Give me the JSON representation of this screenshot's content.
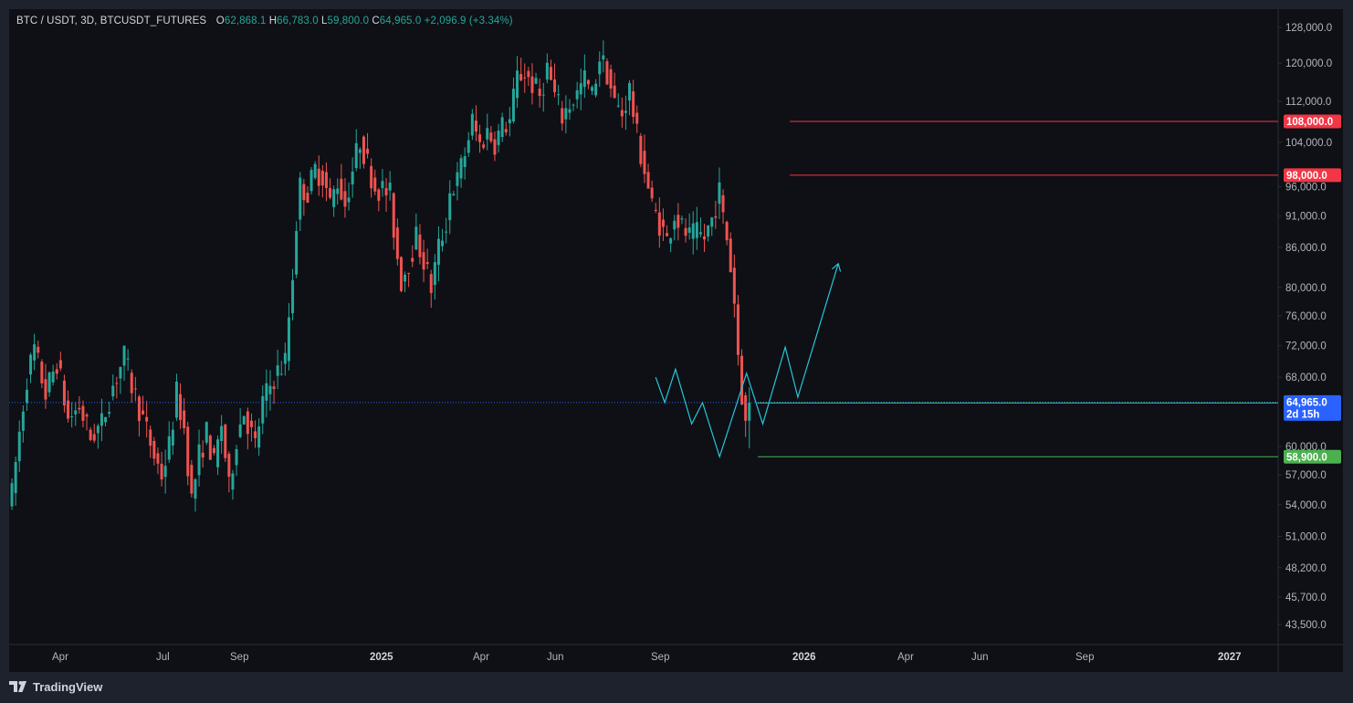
{
  "legend": {
    "symbol": "BTC / USDT, 3D, BTCUSDT_FUTURES",
    "open_label": "O",
    "open": "62,868.1",
    "high_label": "H",
    "high": "66,783.0",
    "low_label": "L",
    "low": "59,800.0",
    "close_label": "C",
    "close": "64,965.0",
    "change": "+2,096.9 (+3.34%)"
  },
  "brand": {
    "name": "TradingView",
    "logo_icon": "tradingview-logo-icon"
  },
  "colors": {
    "background": "#0e1015",
    "frame": "#1e222d",
    "up": "#26a69a",
    "down": "#ef5350",
    "projection": "#26c6da",
    "resistance": "#f23645",
    "support": "#4caf50",
    "last_price": "#2962ff"
  },
  "chart_data": {
    "type": "candlestick",
    "symbol": "BTC / USDT",
    "interval": "3D",
    "y_scale": "log",
    "ylim": [
      42500,
      131000
    ],
    "y_ticks": [
      "128,000.0",
      "120,000.0",
      "112,000.0",
      "104,000.0",
      "96,000.0",
      "91,000.0",
      "86,000.0",
      "80,000.0",
      "76,000.0",
      "72,000.0",
      "68,000.0",
      "60,000.0",
      "57,000.0",
      "54,000.0",
      "51,000.0",
      "48,200.0",
      "45,700.0",
      "43,500.0"
    ],
    "x_ticks": [
      {
        "label": "Apr",
        "bold": false
      },
      {
        "label": "Jul",
        "bold": false
      },
      {
        "label": "Sep",
        "bold": false
      },
      {
        "label": "2025",
        "bold": true
      },
      {
        "label": "Apr",
        "bold": false
      },
      {
        "label": "Jun",
        "bold": false
      },
      {
        "label": "Sep",
        "bold": false
      },
      {
        "label": "2026",
        "bold": true
      },
      {
        "label": "Apr",
        "bold": false
      },
      {
        "label": "Jun",
        "bold": false
      },
      {
        "label": "Sep",
        "bold": false
      },
      {
        "label": "2027",
        "bold": true
      }
    ],
    "path_closes": [
      [
        0,
        55000
      ],
      [
        4,
        68000
      ],
      [
        6,
        71500
      ],
      [
        9,
        66000
      ],
      [
        12,
        70000
      ],
      [
        15,
        63000
      ],
      [
        18,
        64500
      ],
      [
        21,
        61000
      ],
      [
        24,
        62500
      ],
      [
        27,
        67000
      ],
      [
        30,
        70500
      ],
      [
        32,
        67000
      ],
      [
        35,
        63000
      ],
      [
        38,
        59000
      ],
      [
        40,
        57000
      ],
      [
        42,
        60000
      ],
      [
        44,
        66000
      ],
      [
        46,
        62000
      ],
      [
        48,
        54500
      ],
      [
        50,
        59000
      ],
      [
        52,
        61500
      ],
      [
        54,
        58000
      ],
      [
        56,
        62500
      ],
      [
        58,
        55500
      ],
      [
        60,
        61000
      ],
      [
        62,
        64000
      ],
      [
        65,
        60000
      ],
      [
        67,
        65000
      ],
      [
        70,
        68000
      ],
      [
        73,
        70000
      ],
      [
        74,
        76000
      ],
      [
        75,
        82000
      ],
      [
        76,
        90000
      ],
      [
        77,
        96000
      ],
      [
        79,
        95000
      ],
      [
        81,
        99000
      ],
      [
        83,
        98000
      ],
      [
        85,
        93000
      ],
      [
        87,
        97000
      ],
      [
        89,
        93000
      ],
      [
        91,
        99000
      ],
      [
        93,
        104500
      ],
      [
        95,
        100000
      ],
      [
        97,
        96000
      ],
      [
        99,
        95500
      ],
      [
        101,
        94500
      ],
      [
        102,
        89000
      ],
      [
        103,
        84500
      ],
      [
        104,
        81000
      ],
      [
        106,
        84000
      ],
      [
        108,
        87500
      ],
      [
        110,
        84000
      ],
      [
        112,
        80000
      ],
      [
        114,
        86000
      ],
      [
        116,
        90000
      ],
      [
        117,
        95000
      ],
      [
        119,
        97000
      ],
      [
        121,
        102000
      ],
      [
        123,
        108000
      ],
      [
        125,
        103500
      ],
      [
        127,
        106000
      ],
      [
        129,
        104000
      ],
      [
        131,
        107000
      ],
      [
        133,
        108000
      ],
      [
        135,
        117000
      ],
      [
        137,
        118000
      ],
      [
        139,
        115500
      ],
      [
        141,
        113000
      ],
      [
        143,
        119000
      ],
      [
        145,
        113000
      ],
      [
        147,
        109000
      ],
      [
        149,
        111500
      ],
      [
        151,
        113500
      ],
      [
        153,
        116500
      ],
      [
        155,
        113000
      ],
      [
        157,
        121500
      ],
      [
        159,
        118000
      ],
      [
        161,
        111500
      ],
      [
        163,
        109500
      ],
      [
        165,
        114500
      ],
      [
        167,
        105000
      ],
      [
        169,
        99000
      ],
      [
        171,
        92500
      ],
      [
        173,
        90000
      ],
      [
        175,
        87000
      ],
      [
        177,
        91500
      ],
      [
        179,
        89000
      ],
      [
        181,
        87500
      ],
      [
        183,
        88000
      ],
      [
        185,
        87500
      ],
      [
        187,
        90500
      ],
      [
        188,
        93000
      ],
      [
        189,
        95000
      ],
      [
        190,
        90500
      ],
      [
        191,
        87500
      ],
      [
        192,
        83000
      ],
      [
        193,
        78000
      ],
      [
        194,
        71000
      ],
      [
        195,
        66000
      ],
      [
        196,
        62868
      ],
      [
        197,
        64965
      ]
    ],
    "projection": [
      {
        "x": "2026-01-29",
        "y": 68000
      },
      {
        "x": "2026-02-08",
        "y": 64965
      },
      {
        "x": "2026-02-20",
        "y": 69000
      },
      {
        "x": "2026-03-10",
        "y": 62500
      },
      {
        "x": "2026-03-22",
        "y": 64965
      },
      {
        "x": "2026-04-10",
        "y": 58900
      },
      {
        "x": "2026-05-10",
        "y": 68500
      },
      {
        "x": "2026-05-28",
        "y": 62500
      },
      {
        "x": "2026-06-22",
        "y": 71800
      },
      {
        "x": "2026-07-06",
        "y": 65600
      },
      {
        "x": "2026-08-20",
        "y": 83500
      }
    ],
    "levels": [
      {
        "value": 108000,
        "label": "108,000.0",
        "kind": "resistance"
      },
      {
        "value": 98000,
        "label": "98,000.0",
        "kind": "resistance"
      },
      {
        "value": 64900,
        "label": "64,900.0",
        "kind": "support"
      },
      {
        "value": 58900,
        "label": "58,900.0",
        "kind": "support"
      }
    ],
    "last_price": {
      "value": 64965,
      "label": "64,965.0",
      "countdown": "2d 15h"
    }
  }
}
